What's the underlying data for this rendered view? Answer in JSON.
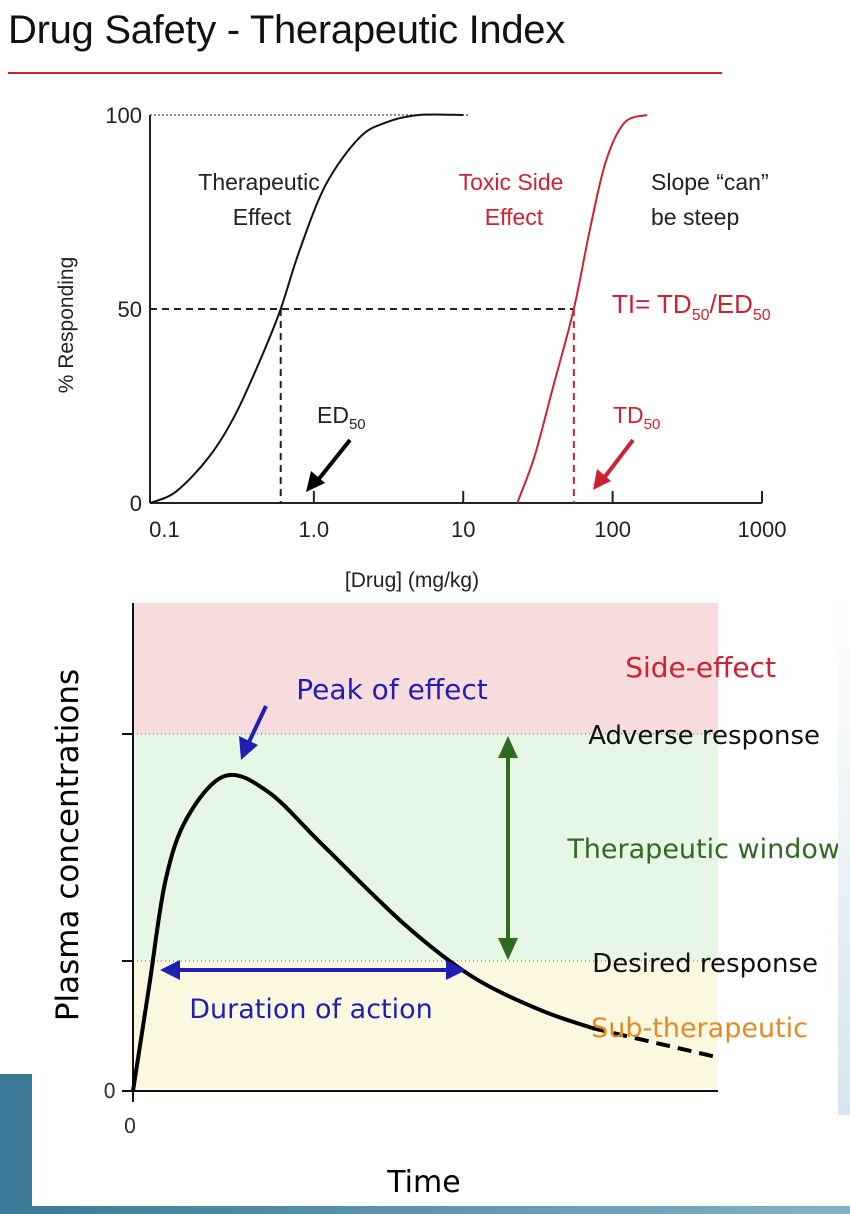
{
  "page": {
    "title": "Drug Safety - Therapeutic Index"
  },
  "colors": {
    "title_rule": "#cc2222",
    "therapeutic": "#111111",
    "toxic": "#cc2233",
    "side_effect_zone": "#f6dcdc",
    "window_zone": "#e6f7e6",
    "sub_zone": "#fbf8df",
    "peak_blue": "#1f1fb4",
    "window_green": "#2e6b1e",
    "sub_orange": "#e08a2a"
  },
  "chart_data": [
    {
      "type": "line",
      "xscale": "log",
      "xlabel": "[Drug] (mg/kg)",
      "ylabel": "% Responding",
      "xlim": [
        0.08,
        1000
      ],
      "ylim": [
        0,
        100
      ],
      "x_ticks": [
        "0.1",
        "1.0",
        "10",
        "100",
        "1000"
      ],
      "y_ticks": [
        "0",
        "50",
        "100"
      ],
      "series": [
        {
          "name": "Therapeutic Effect",
          "color": "#111111",
          "points": [
            [
              0.08,
              0
            ],
            [
              0.12,
              3
            ],
            [
              0.2,
              12
            ],
            [
              0.3,
              23
            ],
            [
              0.45,
              38
            ],
            [
              0.6,
              50
            ],
            [
              0.8,
              65
            ],
            [
              1.2,
              82
            ],
            [
              2,
              94
            ],
            [
              3,
              98
            ],
            [
              5,
              100
            ],
            [
              10,
              100
            ]
          ]
        },
        {
          "name": "Toxic Side Effect",
          "color": "#cc2233",
          "points": [
            [
              23,
              0
            ],
            [
              30,
              12
            ],
            [
              40,
              30
            ],
            [
              55,
              50
            ],
            [
              70,
              70
            ],
            [
              90,
              88
            ],
            [
              120,
              98
            ],
            [
              170,
              100
            ]
          ]
        }
      ],
      "annotations": {
        "therapeutic_label": [
          "Therapeutic",
          "Effect"
        ],
        "toxic_label": [
          "Toxic Side",
          "Effect"
        ],
        "slope_note": [
          "Slope “can”",
          "be steep"
        ],
        "ti_formula": {
          "prefix": "TI= TD",
          "sub1": "50",
          "mid": "/ED",
          "sub2": "50"
        },
        "ed50": {
          "main": "ED",
          "sub": "50",
          "x": 0.6
        },
        "td50": {
          "main": "TD",
          "sub": "50",
          "x": 55
        }
      }
    },
    {
      "type": "line",
      "xlabel": "Time",
      "ylabel": "Plasma concentrations",
      "x_ticks": [
        "0"
      ],
      "y_ticks": [
        "0"
      ],
      "zones": [
        {
          "name": "Side-effect",
          "color": "#cc2233"
        },
        {
          "name": "Sub-therapeutic",
          "color": "#e08a2a"
        }
      ],
      "thresholds": [
        "Adverse response",
        "Desired response"
      ],
      "annotations": {
        "peak": "Peak of effect",
        "window": "Therapeutic window",
        "duration": "Duration of action"
      },
      "series": [
        {
          "name": "Plasma concentration",
          "color": "#000000",
          "points": [
            [
              0,
              0
            ],
            [
              0.6,
              100
            ],
            [
              1.2,
              200
            ],
            [
              2,
              260
            ],
            [
              3.4,
              300
            ],
            [
              5,
              285
            ],
            [
              7,
              235
            ],
            [
              10,
              160
            ],
            [
              12.5,
              110
            ],
            [
              15,
              78
            ],
            [
              17,
              60
            ],
            [
              20,
              42
            ],
            [
              21.5,
              33
            ]
          ]
        }
      ]
    }
  ]
}
